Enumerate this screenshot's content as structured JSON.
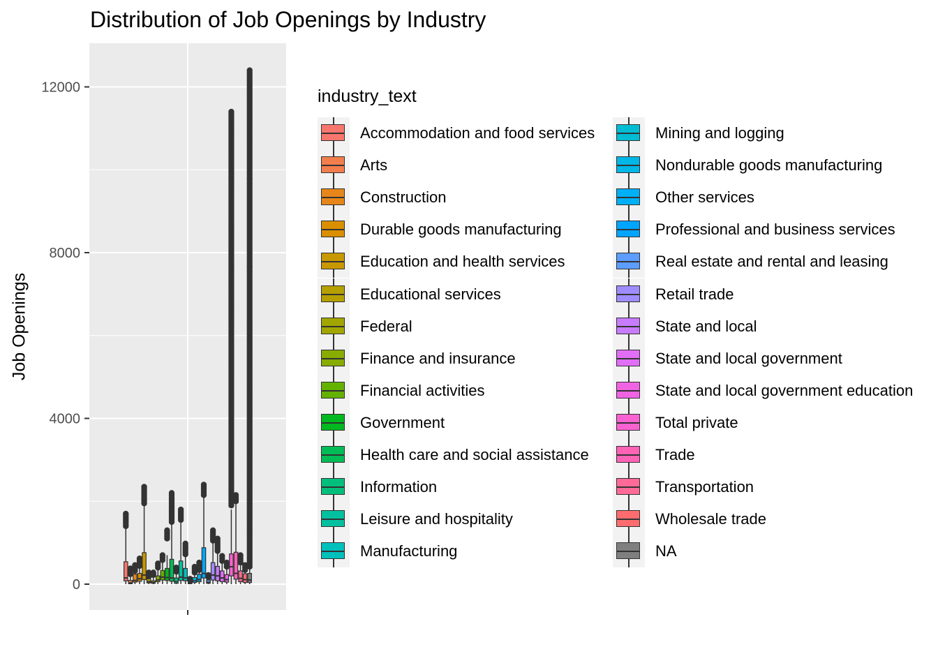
{
  "chart_data": {
    "type": "box",
    "title": "Distribution of Job Openings by Industry",
    "xlabel": "",
    "ylabel": "Job Openings",
    "ylim": [
      -600,
      13000
    ],
    "yticks": [
      0,
      4000,
      8000,
      12000
    ],
    "ytick_labels": [
      "0",
      "4000",
      "8000",
      "12000"
    ],
    "grid": true,
    "legend_title": "industry_text",
    "legend_position": "right",
    "series": [
      {
        "name": "Accommodation and food services",
        "color": "#F8766D",
        "q1": 80,
        "median": 150,
        "q3": 540,
        "whisker_high": 1350,
        "outliers_range": [
          1400,
          1700
        ]
      },
      {
        "name": "Arts",
        "color": "#F17E4C",
        "q1": 10,
        "median": 30,
        "q3": 90,
        "whisker_high": 220,
        "outliers_range": [
          240,
          380
        ]
      },
      {
        "name": "Construction",
        "color": "#E6861A",
        "q1": 50,
        "median": 90,
        "q3": 240,
        "whisker_high": 300,
        "outliers_range": [
          320,
          460
        ]
      },
      {
        "name": "Durable goods manufacturing",
        "color": "#D98F00",
        "q1": 70,
        "median": 130,
        "q3": 260,
        "whisker_high": 420,
        "outliers_range": [
          440,
          620
        ]
      },
      {
        "name": "Education and health services",
        "color": "#C89800",
        "q1": 110,
        "median": 220,
        "q3": 760,
        "whisker_high": 1900,
        "outliers_range": [
          1950,
          2350
        ]
      },
      {
        "name": "Educational services",
        "color": "#B6A000",
        "q1": 30,
        "median": 60,
        "q3": 130,
        "whisker_high": 160,
        "outliers_range": [
          180,
          280
        ]
      },
      {
        "name": "Federal",
        "color": "#A2A600",
        "q1": 20,
        "median": 40,
        "q3": 80,
        "whisker_high": 200,
        "outliers_range": [
          220,
          280
        ]
      },
      {
        "name": "Finance and insurance",
        "color": "#88AC00",
        "q1": 60,
        "median": 100,
        "q3": 200,
        "whisker_high": 380,
        "outliers_range": [
          400,
          500
        ]
      },
      {
        "name": "Financial activities",
        "color": "#64B200",
        "q1": 100,
        "median": 170,
        "q3": 330,
        "whisker_high": 560,
        "outliers_range": [
          580,
          700
        ]
      },
      {
        "name": "Government",
        "color": "#00B81F",
        "q1": 90,
        "median": 160,
        "q3": 380,
        "whisker_high": 700,
        "outliers_range": [
          1100,
          1300
        ]
      },
      {
        "name": "Health care and social assistance",
        "color": "#00BC56",
        "q1": 70,
        "median": 150,
        "q3": 600,
        "whisker_high": 1450,
        "outliers_range": [
          1500,
          2200
        ]
      },
      {
        "name": "Information",
        "color": "#00BF7D",
        "q1": 20,
        "median": 60,
        "q3": 150,
        "whisker_high": 280,
        "outliers_range": [
          300,
          400
        ]
      },
      {
        "name": "Leisure and hospitality",
        "color": "#00C09F",
        "q1": 90,
        "median": 170,
        "q3": 560,
        "whisker_high": 1500,
        "outliers_range": [
          1550,
          1800
        ]
      },
      {
        "name": "Manufacturing",
        "color": "#00C0BC",
        "q1": 80,
        "median": 150,
        "q3": 380,
        "whisker_high": 700,
        "outliers_range": [
          720,
          980
        ]
      },
      {
        "name": "Mining and logging",
        "color": "#00BDD4",
        "q1": 10,
        "median": 25,
        "q3": 50,
        "whisker_high": 90,
        "outliers_range": [
          100,
          130
        ]
      },
      {
        "name": "Nondurable goods manufacturing",
        "color": "#00B7E8",
        "q1": 40,
        "median": 80,
        "q3": 160,
        "whisker_high": 260,
        "outliers_range": [
          280,
          420
        ]
      },
      {
        "name": "Other services",
        "color": "#00B0F6",
        "q1": 60,
        "median": 110,
        "q3": 240,
        "whisker_high": 300,
        "outliers_range": [
          340,
          520
        ]
      },
      {
        "name": "Professional and business services",
        "color": "#00A5FF",
        "q1": 150,
        "median": 260,
        "q3": 880,
        "whisker_high": 2100,
        "outliers_range": [
          2150,
          2400
        ]
      },
      {
        "name": "Real estate and rental and leasing",
        "color": "#5C9DFF",
        "q1": 20,
        "median": 45,
        "q3": 100,
        "whisker_high": 150,
        "outliers_range": [
          170,
          220
        ]
      },
      {
        "name": "Retail trade",
        "color": "#9F8CFF",
        "q1": 100,
        "median": 220,
        "q3": 520,
        "whisker_high": 1000,
        "outliers_range": [
          1050,
          1300
        ]
      },
      {
        "name": "State and local",
        "color": "#C77CFF",
        "q1": 80,
        "median": 200,
        "q3": 430,
        "whisker_high": 780,
        "outliers_range": [
          800,
          1100
        ]
      },
      {
        "name": "State and local government",
        "color": "#E16EF6",
        "q1": 60,
        "median": 150,
        "q3": 320,
        "whisker_high": 550,
        "outliers_range": [
          560,
          680
        ]
      },
      {
        "name": "State and local government education",
        "color": "#F064E4",
        "q1": 50,
        "median": 110,
        "q3": 230,
        "whisker_high": 400,
        "outliers_range": [
          420,
          520
        ]
      },
      {
        "name": "Total private",
        "color": "#FA62D2",
        "q1": 200,
        "median": 420,
        "q3": 730,
        "whisker_high": 1800,
        "outliers_range": [
          1900,
          11400
        ]
      },
      {
        "name": "Trade",
        "color": "#FF63B6",
        "q1": 120,
        "median": 260,
        "q3": 770,
        "whisker_high": 1950,
        "outliers_range": [
          2000,
          2150
        ]
      },
      {
        "name": "Transportation",
        "color": "#FF6A98",
        "q1": 60,
        "median": 140,
        "q3": 320,
        "whisker_high": 500,
        "outliers_range": [
          520,
          700
        ]
      },
      {
        "name": "Wholesale trade",
        "color": "#FF6C6F",
        "q1": 40,
        "median": 110,
        "q3": 250,
        "whisker_high": 320,
        "outliers_range": [
          340,
          460
        ]
      },
      {
        "name": "NA",
        "color": "#7F7F7F",
        "q1": 40,
        "median": 100,
        "q3": 260,
        "whisker_high": 400,
        "outliers_range": [
          420,
          12400
        ]
      }
    ]
  }
}
